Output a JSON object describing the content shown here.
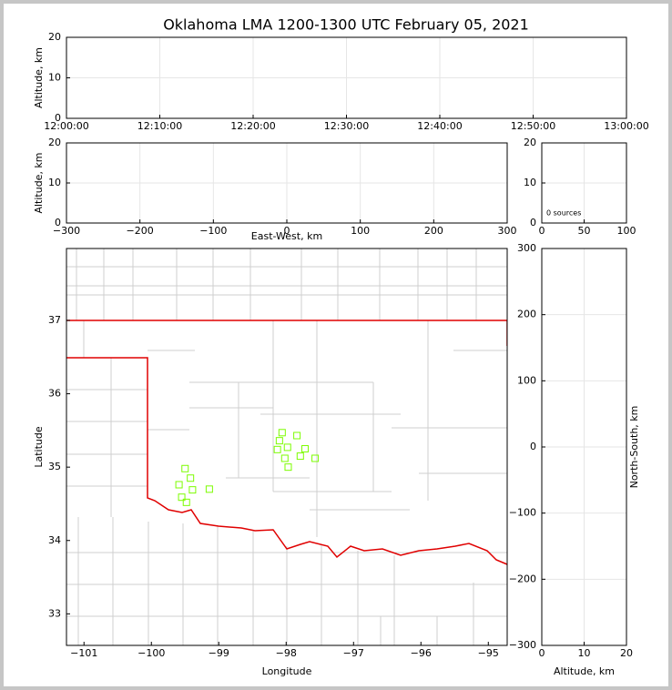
{
  "title": "Oklahoma LMA 1200-1300 UTC February 05, 2021",
  "chart_data": [
    {
      "type": "scatter",
      "ylabel": "Altitude, km",
      "grid": true,
      "xlim": [
        0,
        60
      ],
      "xticks": [
        {
          "value": 0,
          "label": "12:00:00"
        },
        {
          "value": 10,
          "label": "12:10:00"
        },
        {
          "value": 20,
          "label": "12:20:00"
        },
        {
          "value": 30,
          "label": "12:30:00"
        },
        {
          "value": 40,
          "label": "12:40:00"
        },
        {
          "value": 50,
          "label": "12:50:00"
        },
        {
          "value": 60,
          "label": "13:00:00"
        }
      ],
      "ylim": [
        0,
        20
      ],
      "yticks": [
        0,
        10,
        20
      ]
    },
    {
      "type": "scatter",
      "xlabel": "East-West, km",
      "ylabel": "Altitude, km",
      "grid": true,
      "xlim": [
        -300,
        300
      ],
      "xticks": [
        {
          "value": -300,
          "label": "−300"
        },
        {
          "value": -200,
          "label": "−200"
        },
        {
          "value": -100,
          "label": "−100"
        },
        0,
        100,
        200,
        300
      ],
      "ylim": [
        0,
        20
      ],
      "yticks": [
        0,
        10,
        20
      ]
    },
    {
      "type": "histogram",
      "annotation": "0 sources",
      "grid": true,
      "xlim": [
        0,
        100
      ],
      "xticks": [
        0,
        50,
        100
      ],
      "ylim": [
        0,
        20
      ],
      "yticks": [
        0,
        10,
        20
      ]
    },
    {
      "type": "scatter",
      "xlabel": "Longitude",
      "ylabel": "Latitude",
      "grid": false,
      "color": "#7cfc00",
      "marker": "square",
      "xlim": [
        -101.26,
        -94.72
      ],
      "xticks": [
        {
          "value": -101,
          "label": "−101"
        },
        {
          "value": -100,
          "label": "−100"
        },
        {
          "value": -99,
          "label": "−99"
        },
        {
          "value": -98,
          "label": "−98"
        },
        {
          "value": -97,
          "label": "−97"
        },
        {
          "value": -96,
          "label": "−96"
        },
        {
          "value": -95,
          "label": "−95"
        }
      ],
      "ylim": [
        32.57,
        37.98
      ],
      "yticks": [
        33,
        34,
        35,
        36,
        37
      ],
      "x": [
        -98.06,
        -97.84,
        -98.1,
        -97.98,
        -97.72,
        -98.13,
        -97.79,
        -98.02,
        -97.57,
        -97.97,
        -99.5,
        -99.42,
        -99.59,
        -99.39,
        -99.14,
        -99.55,
        -99.48
      ],
      "y": [
        35.47,
        35.43,
        35.36,
        35.27,
        35.25,
        35.24,
        35.15,
        35.12,
        35.12,
        35.0,
        34.98,
        34.85,
        34.76,
        34.69,
        34.7,
        34.59,
        34.52
      ]
    },
    {
      "type": "scatter",
      "xlabel": "Altitude, km",
      "ylabel": "North-South, km",
      "grid": true,
      "xlim": [
        0,
        20
      ],
      "xticks": [
        0,
        10,
        20
      ],
      "ylim": [
        -300,
        300
      ],
      "yticks": [
        {
          "value": -300,
          "label": "−300"
        },
        {
          "value": -200,
          "label": "−200"
        },
        {
          "value": -100,
          "label": "−100"
        },
        0,
        100,
        200,
        300
      ]
    }
  ]
}
